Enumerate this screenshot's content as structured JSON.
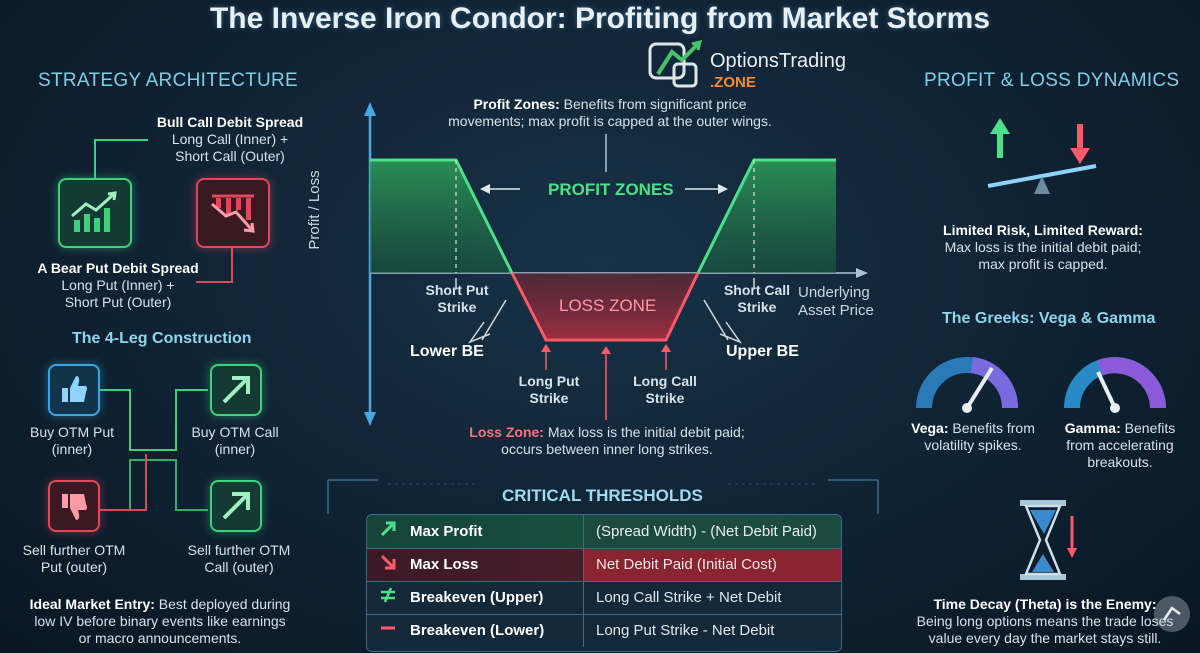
{
  "title": "The Inverse Iron Condor: Profiting from Market Storms",
  "logo": {
    "name": "OptionsTrading",
    "suffix": ".ZONE"
  },
  "architecture": {
    "heading": "STRATEGY ARCHITECTURE",
    "bull_title": "Bull Call Debit Spread",
    "bull_line1": "Long Call (Inner) +",
    "bull_line2": "Short Call (Outer)",
    "bear_title": "A Bear Put Debit Spread",
    "bear_line1": "Long Put (Inner) +",
    "bear_line2": "Short Put (Outer)",
    "four_leg_heading": "The 4-Leg Construction",
    "legs": [
      {
        "line1": "Buy OTM Put",
        "line2": "(inner)"
      },
      {
        "line1": "Buy OTM Call",
        "line2": "(inner)"
      },
      {
        "line1": "Sell further OTM",
        "line2": "Put (outer)"
      },
      {
        "line1": "Sell further OTM",
        "line2": "Call (outer)"
      }
    ],
    "entry_title": "Ideal Market Entry:",
    "entry_line1": " Best deployed during",
    "entry_line2": "low IV before binary events like earnings",
    "entry_line3": "or macro announcements."
  },
  "payoff": {
    "profit_title": "Profit Zones:",
    "profit_line1": " Benefits from significant price",
    "profit_line2": "movements; max profit is capped at the outer wings.",
    "profit_zones_label": "PROFIT ZONES",
    "loss_zone_label": "LOSS ZONE",
    "y_axis_label": "Profit / Loss",
    "x_axis_line1": "Underlying",
    "x_axis_line2": "Asset Price",
    "short_put_line1": "Short Put",
    "short_put_line2": "Strike",
    "short_call_line1": "Short Call",
    "short_call_line2": "Strike",
    "lower_be": "Lower BE",
    "upper_be": "Upper BE",
    "long_put_line1": "Long Put",
    "long_put_line2": "Strike",
    "long_call_line1": "Long Call",
    "long_call_line2": "Strike",
    "loss_title": "Loss Zone:",
    "loss_line1": " Max loss is the initial debit paid;",
    "loss_line2": "occurs between inner long strikes."
  },
  "thresholds": {
    "heading": "CRITICAL THRESHOLDS",
    "rows": [
      {
        "label": "Max Profit",
        "value": "(Spread Width) - (Net Debit Paid)"
      },
      {
        "label": "Max Loss",
        "value": "Net Debit Paid (Initial Cost)"
      },
      {
        "label": "Breakeven (Upper)",
        "value": "Long Call Strike + Net Debit"
      },
      {
        "label": "Breakeven (Lower)",
        "value": "Long Put Strike - Net Debit"
      }
    ]
  },
  "dynamics": {
    "heading": "PROFIT & LOSS DYNAMICS",
    "risk_title": "Limited Risk, Limited Reward:",
    "risk_line1": "Max loss is the initial debit paid;",
    "risk_line2": "max profit is capped.",
    "greeks_heading": "The Greeks: Vega & Gamma",
    "vega_title": "Vega:",
    "vega_line1": " Benefits from",
    "vega_line2": "volatility spikes.",
    "gamma_title": "Gamma:",
    "gamma_line1": " Benefits",
    "gamma_line2": "from accelerating",
    "gamma_line3": "breakouts.",
    "theta_title": "Time Decay (Theta) is the Enemy:",
    "theta_line1": "Being long options means the trade loses",
    "theta_line2": "value every day the market stays still."
  },
  "colors": {
    "green": "#3fd07a",
    "red": "#e0485a",
    "blue": "#3aa6e0",
    "heading": "#7fd0e6"
  }
}
